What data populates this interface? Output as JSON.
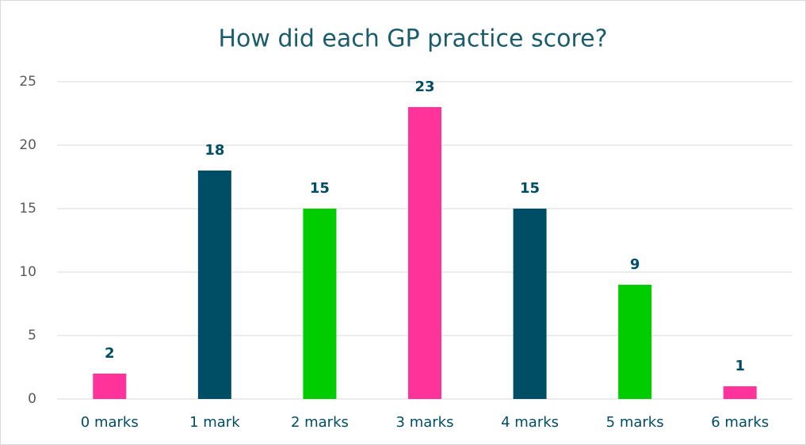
{
  "chart_data": {
    "type": "bar",
    "title": "How did each GP practice score?",
    "categories": [
      "0 marks",
      "1 mark",
      "2 marks",
      "3 marks",
      "4 marks",
      "5 marks",
      "6 marks"
    ],
    "values": [
      2,
      18,
      15,
      23,
      15,
      9,
      1
    ],
    "colors": [
      "#ff3399",
      "#004d66",
      "#00cc00",
      "#ff3399",
      "#004d66",
      "#00cc00",
      "#ff3399"
    ],
    "ylim": [
      0,
      25
    ],
    "yticks": [
      0,
      5,
      10,
      15,
      20,
      25
    ],
    "grid": true
  }
}
